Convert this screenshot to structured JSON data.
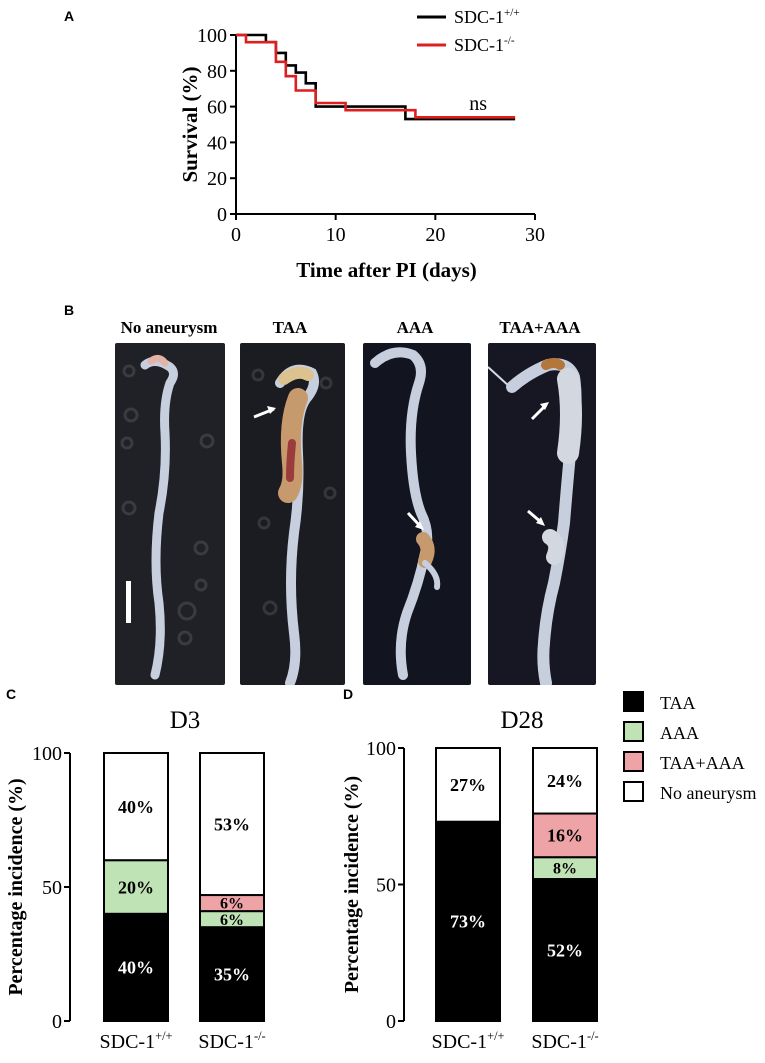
{
  "panels": {
    "A": "A",
    "B": "B",
    "C": "C",
    "D": "D"
  },
  "panel_b": {
    "labels": [
      "No aneurysm",
      "TAA",
      "AAA",
      "TAA+AAA"
    ],
    "colors": {
      "background": "#1a1b22",
      "vessel": "#c7cede",
      "tint": "#c79a6e"
    }
  },
  "chart_data": [
    {
      "type": "line",
      "step": true,
      "xlabel": "Time after PI (days)",
      "ylabel": "Survival (%)",
      "xlim": [
        0,
        30
      ],
      "ylim": [
        0,
        100
      ],
      "xticks": [
        0,
        10,
        20,
        30
      ],
      "yticks": [
        0,
        20,
        40,
        60,
        80,
        100
      ],
      "annotation": "ns",
      "legend_position": "top-right",
      "series": [
        {
          "name": "SDC-1",
          "superscript": "+/+",
          "color": "#000000",
          "points": [
            [
              0,
              100
            ],
            [
              3,
              100
            ],
            [
              3,
              96
            ],
            [
              4,
              96
            ],
            [
              4,
              90
            ],
            [
              5,
              90
            ],
            [
              5,
              83
            ],
            [
              6,
              83
            ],
            [
              6,
              79
            ],
            [
              7,
              79
            ],
            [
              7,
              73
            ],
            [
              8,
              73
            ],
            [
              8,
              60
            ],
            [
              17,
              60
            ],
            [
              17,
              53
            ],
            [
              28,
              53
            ]
          ]
        },
        {
          "name": "SDC-1",
          "superscript": "-/-",
          "color": "#dd1f1f",
          "points": [
            [
              0,
              100
            ],
            [
              1,
              100
            ],
            [
              1,
              96
            ],
            [
              4,
              96
            ],
            [
              4,
              85
            ],
            [
              5,
              85
            ],
            [
              5,
              77
            ],
            [
              6,
              77
            ],
            [
              6,
              69
            ],
            [
              8,
              69
            ],
            [
              8,
              62
            ],
            [
              11,
              62
            ],
            [
              11,
              58
            ],
            [
              18,
              58
            ],
            [
              18,
              54
            ],
            [
              28,
              54
            ]
          ]
        }
      ]
    },
    {
      "type": "bar",
      "stacked": true,
      "title": "D3",
      "ylabel": "Percentage incidence (%)",
      "ylim": [
        0,
        100
      ],
      "yticks": [
        0,
        50,
        100
      ],
      "categories": [
        {
          "base": "SDC-1",
          "sup": "+/+"
        },
        {
          "base": "SDC-1",
          "sup": "-/-"
        }
      ],
      "series": [
        {
          "name": "TAA",
          "values": [
            40,
            35
          ],
          "labels": [
            "40%",
            "35%"
          ]
        },
        {
          "name": "AAA",
          "values": [
            20,
            6
          ],
          "labels": [
            "20%",
            "6%"
          ]
        },
        {
          "name": "TAA+AAA",
          "values": [
            0,
            6
          ],
          "labels": [
            "",
            "6%"
          ]
        },
        {
          "name": "No aneurysm",
          "values": [
            40,
            53
          ],
          "labels": [
            "40%",
            "53%"
          ]
        }
      ]
    },
    {
      "type": "bar",
      "stacked": true,
      "title": "D28",
      "ylabel": "Percentage incidence (%)",
      "ylim": [
        0,
        100
      ],
      "yticks": [
        0,
        50,
        100
      ],
      "categories": [
        {
          "base": "SDC-1",
          "sup": "+/+"
        },
        {
          "base": "SDC-1",
          "sup": "-/-"
        }
      ],
      "series": [
        {
          "name": "TAA",
          "values": [
            73,
            52
          ],
          "labels": [
            "73%",
            "52%"
          ]
        },
        {
          "name": "AAA",
          "values": [
            0,
            8
          ],
          "labels": [
            "",
            "8%"
          ]
        },
        {
          "name": "TAA+AAA",
          "values": [
            0,
            16
          ],
          "labels": [
            "",
            "16%"
          ]
        },
        {
          "name": "No aneurysm",
          "values": [
            27,
            24
          ],
          "labels": [
            "27%",
            "24%"
          ]
        }
      ]
    }
  ],
  "bar_legend": {
    "items": [
      "TAA",
      "AAA",
      "TAA+AAA",
      "No aneurysm"
    ],
    "colors": {
      "TAA": "#000000",
      "AAA": "#bfe3b4",
      "TAA+AAA": "#eea3a6",
      "No aneurysm": "#ffffff"
    },
    "label_colors": {
      "TAA": "#ffffff",
      "AAA": "#000000",
      "TAA+AAA": "#000000",
      "No aneurysm": "#000000"
    }
  }
}
